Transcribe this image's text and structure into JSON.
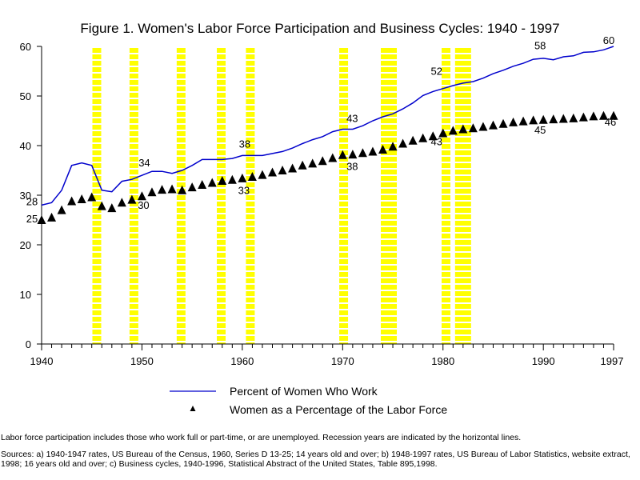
{
  "chart_data": {
    "type": "line",
    "title": "Figure 1. Women's Labor Force Participation and Business Cycles: 1940 - 1997",
    "xlabel": "",
    "ylabel": "",
    "xlim": [
      1940,
      1997
    ],
    "ylim": [
      0,
      60
    ],
    "x_ticks": [
      1940,
      1950,
      1960,
      1970,
      1980,
      1990
    ],
    "x_end_label": "1997",
    "y_ticks": [
      0,
      10,
      20,
      30,
      40,
      50,
      60
    ],
    "grid": false,
    "legend_position": "bottom-center",
    "recession_years": [
      1945.5,
      1949.2,
      1953.9,
      1957.9,
      1960.8,
      1970.1,
      1974.6,
      1980.3,
      1982.0
    ],
    "series": [
      {
        "name": "Percent of Women Who Work",
        "style": "line",
        "color": "#0000cc",
        "x": [
          1940,
          1941,
          1942,
          1943,
          1944,
          1945,
          1946,
          1947,
          1948,
          1949,
          1950,
          1951,
          1952,
          1953,
          1954,
          1955,
          1956,
          1957,
          1958,
          1959,
          1960,
          1961,
          1962,
          1963,
          1964,
          1965,
          1966,
          1967,
          1968,
          1969,
          1970,
          1971,
          1972,
          1973,
          1974,
          1975,
          1976,
          1977,
          1978,
          1979,
          1980,
          1981,
          1982,
          1983,
          1984,
          1985,
          1986,
          1987,
          1988,
          1989,
          1990,
          1991,
          1992,
          1993,
          1994,
          1995,
          1996,
          1997
        ],
        "y": [
          28,
          28.5,
          31,
          36,
          36.5,
          36,
          31,
          30.7,
          32.8,
          33.2,
          34,
          34.8,
          34.8,
          34.4,
          35,
          36,
          37.2,
          37.2,
          37.2,
          37.4,
          38,
          38,
          38,
          38.4,
          38.8,
          39.5,
          40.4,
          41.2,
          41.8,
          42.8,
          43.3,
          43.3,
          44,
          45,
          45.8,
          46.4,
          47.4,
          48.6,
          50.1,
          50.9,
          51.5,
          52.1,
          52.6,
          52.9,
          53.6,
          54.5,
          55.2,
          56,
          56.6,
          57.4,
          57.6,
          57.3,
          57.9,
          58.1,
          58.8,
          58.9,
          59.3,
          60
        ]
      },
      {
        "name": "Women as a Percentage of the Labor Force",
        "style": "marker",
        "marker": "triangle",
        "color": "#000000",
        "x": [
          1940,
          1941,
          1942,
          1943,
          1944,
          1945,
          1946,
          1947,
          1948,
          1949,
          1950,
          1951,
          1952,
          1953,
          1954,
          1955,
          1956,
          1957,
          1958,
          1959,
          1960,
          1961,
          1962,
          1963,
          1964,
          1965,
          1966,
          1967,
          1968,
          1969,
          1970,
          1971,
          1972,
          1973,
          1974,
          1975,
          1976,
          1977,
          1978,
          1979,
          1980,
          1981,
          1982,
          1983,
          1984,
          1985,
          1986,
          1987,
          1988,
          1989,
          1990,
          1991,
          1992,
          1993,
          1994,
          1995,
          1996,
          1997
        ],
        "y": [
          25,
          25.5,
          27,
          28.8,
          29.2,
          29.6,
          27.8,
          27.4,
          28.5,
          29.1,
          29.8,
          30.6,
          31.1,
          31.2,
          31,
          31.6,
          32.1,
          32.5,
          32.9,
          33.1,
          33.4,
          33.7,
          34.1,
          34.6,
          35,
          35.4,
          36,
          36.4,
          36.9,
          37.5,
          38.1,
          38.2,
          38.5,
          38.8,
          39.2,
          39.8,
          40.4,
          41,
          41.5,
          41.9,
          42.5,
          43,
          43.3,
          43.5,
          43.8,
          44.1,
          44.4,
          44.7,
          44.9,
          45.1,
          45.2,
          45.3,
          45.4,
          45.5,
          45.7,
          45.9,
          46,
          46
        ]
      }
    ],
    "annotations": [
      {
        "text": "28",
        "x": 1940,
        "y": 28
      },
      {
        "text": "25",
        "x": 1940,
        "y": 25
      },
      {
        "text": "34",
        "x": 1950,
        "y": 34
      },
      {
        "text": "30",
        "x": 1950,
        "y": 30
      },
      {
        "text": "38",
        "x": 1960,
        "y": 38
      },
      {
        "text": "33",
        "x": 1960,
        "y": 33
      },
      {
        "text": "43",
        "x": 1970,
        "y": 43
      },
      {
        "text": "38",
        "x": 1970,
        "y": 38
      },
      {
        "text": "52",
        "x": 1980,
        "y": 52
      },
      {
        "text": "43",
        "x": 1980,
        "y": 43
      },
      {
        "text": "58",
        "x": 1990,
        "y": 58
      },
      {
        "text": "45",
        "x": 1990,
        "y": 45
      },
      {
        "text": "60",
        "x": 1997,
        "y": 60
      },
      {
        "text": "46",
        "x": 1997,
        "y": 46
      }
    ]
  },
  "notes": {
    "participation": "Labor force participation includes those who work full or part-time, or are unemployed.  Recession years are indicated by the horizontal lines.",
    "sources": "Sources: a) 1940-1947 rates, US Bureau of the Census, 1960, Series D 13-25; 14 years old and over; b) 1948-1997 rates, US Bureau of Labor Statistics, website extract, 1998; 16 years old and over; c) Business cycles, 1940-1996, Statistical Abstract of the United States, Table 895,1998."
  },
  "colors": {
    "recession_band": "#ffff00",
    "work_line": "#0000cc",
    "markers": "#000000"
  }
}
